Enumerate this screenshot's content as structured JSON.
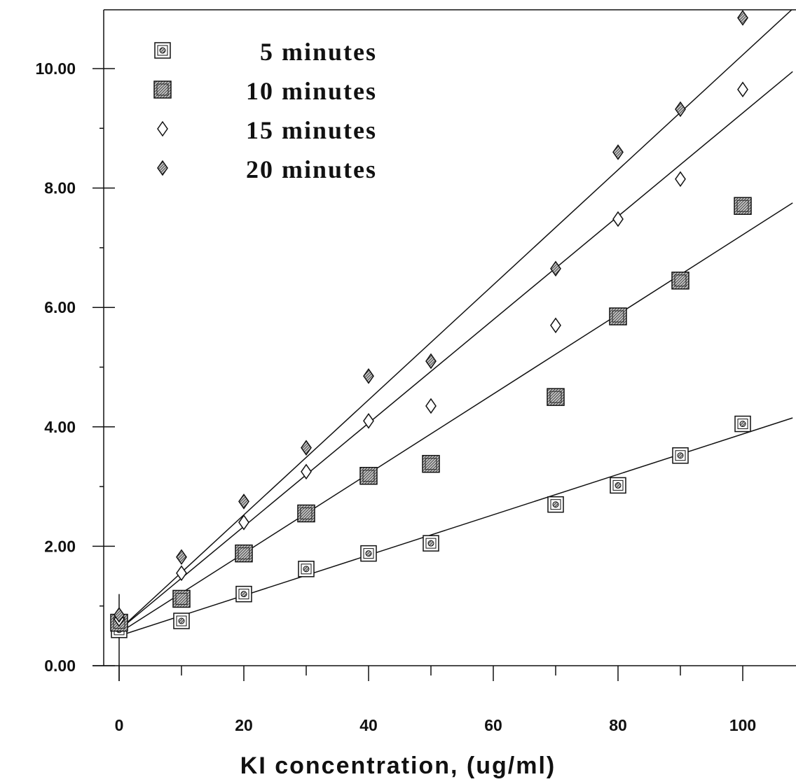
{
  "chart_data": {
    "type": "scatter",
    "xlabel": "KI concentration, (ug/ml)",
    "ylabel": "",
    "xlim": [
      -4,
      108
    ],
    "ylim": [
      -0.1,
      11
    ],
    "x_ticks": [
      0,
      20,
      40,
      60,
      80,
      100
    ],
    "x_tick_labels": [
      "0",
      "20",
      "40",
      "60",
      "80",
      "100"
    ],
    "y_ticks": [
      0,
      2,
      4,
      6,
      8,
      10
    ],
    "y_tick_labels": [
      "0.00",
      "2.00",
      "4.00",
      "6.00",
      "8.00",
      "10.00"
    ],
    "legend_position": "top-left",
    "grid": false,
    "series": [
      {
        "name": "5 minutes",
        "marker": "square-dot",
        "x": [
          0,
          10,
          20,
          30,
          40,
          50,
          70,
          80,
          90,
          100
        ],
        "y": [
          0.6,
          0.75,
          1.2,
          1.62,
          1.88,
          2.05,
          2.7,
          3.02,
          3.52,
          4.05
        ],
        "fit": [
          [
            0,
            0.5
          ],
          [
            108,
            4.15
          ]
        ]
      },
      {
        "name": "10 minutes",
        "marker": "square-filled",
        "x": [
          0,
          10,
          20,
          30,
          40,
          50,
          70,
          80,
          90,
          100
        ],
        "y": [
          0.72,
          1.12,
          1.88,
          2.55,
          3.18,
          3.38,
          4.5,
          5.85,
          6.45,
          7.7
        ],
        "fit": [
          [
            0,
            0.55
          ],
          [
            108,
            7.75
          ]
        ]
      },
      {
        "name": "15 minutes",
        "marker": "diamond-open",
        "x": [
          0,
          10,
          20,
          30,
          40,
          50,
          70,
          80,
          90,
          100
        ],
        "y": [
          0.78,
          1.55,
          2.4,
          3.25,
          4.1,
          4.35,
          5.7,
          7.48,
          8.15,
          9.65
        ],
        "fit": [
          [
            0,
            0.6
          ],
          [
            108,
            9.95
          ]
        ]
      },
      {
        "name": "20 minutes",
        "marker": "diamond-filled",
        "x": [
          0,
          10,
          20,
          30,
          40,
          50,
          70,
          80,
          90,
          100
        ],
        "y": [
          0.85,
          1.82,
          2.75,
          3.65,
          4.85,
          5.1,
          6.65,
          8.6,
          9.32,
          10.85
        ],
        "fit": [
          [
            0,
            0.6
          ],
          [
            108,
            11.0
          ]
        ]
      }
    ]
  }
}
